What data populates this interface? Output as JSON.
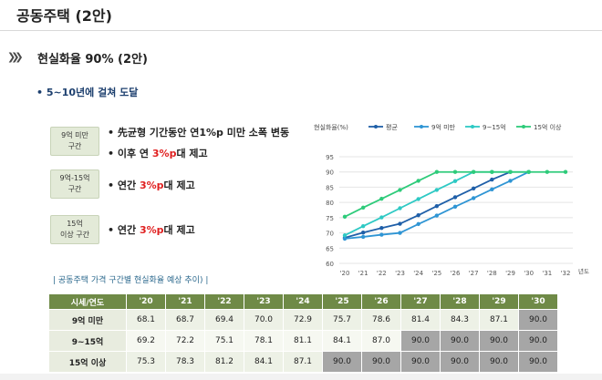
{
  "slide": {
    "title": "공동주택 (2안)",
    "section_title": "현실화율 90% (2안)",
    "sub_bullet": "•  5~10년에 걸쳐 도달"
  },
  "groups": [
    {
      "tag_line1": "9억 미만",
      "tag_line2": "구간",
      "bullets": [
        {
          "prefix": "•  先균형 기간동안 연1%p 미만 소폭 변동",
          "highlight": "",
          "suffix": ""
        },
        {
          "prefix": "•  이후 연 ",
          "highlight": "3%p",
          "suffix": "대 제고"
        }
      ]
    },
    {
      "tag_line1": "9억-15억",
      "tag_line2": "구간",
      "bullets": [
        {
          "prefix": "•  연간 ",
          "highlight": "3%p",
          "suffix": "대 제고"
        }
      ]
    },
    {
      "tag_line1": "15억",
      "tag_line2": "이상 구간",
      "bullets": [
        {
          "prefix": "•  연간 ",
          "highlight": "3%p",
          "suffix": "대 제고"
        }
      ]
    }
  ],
  "chart_data": {
    "type": "line",
    "ylabel": "현실화율(%)",
    "xlabel": "년도",
    "x": [
      "'20",
      "'21",
      "'22",
      "'23",
      "'24",
      "'25",
      "'26",
      "'27",
      "'28",
      "'29",
      "'30",
      "'31",
      "'32"
    ],
    "ylim": [
      60,
      95
    ],
    "yticks": [
      60,
      65,
      70,
      75,
      80,
      85,
      90,
      95
    ],
    "grid": true,
    "legend_position": "top",
    "series": [
      {
        "name": "평균",
        "color": "#1f5fa8",
        "values": [
          68.4,
          70.1,
          71.6,
          73.0,
          75.8,
          78.8,
          81.7,
          84.6,
          87.5,
          90.0,
          null,
          null,
          null
        ]
      },
      {
        "name": "9억 미만",
        "color": "#2f95d4",
        "values": [
          68.1,
          68.7,
          69.4,
          70.0,
          72.9,
          75.7,
          78.6,
          81.4,
          84.3,
          87.1,
          90.0,
          null,
          null
        ]
      },
      {
        "name": "9~15억",
        "color": "#2ec9c4",
        "values": [
          69.2,
          72.2,
          75.1,
          78.1,
          81.1,
          84.1,
          87.0,
          90.0,
          90.0,
          90.0,
          90.0,
          null,
          null
        ]
      },
      {
        "name": "15억 이상",
        "color": "#2ecb7a",
        "values": [
          75.3,
          78.3,
          81.2,
          84.1,
          87.1,
          90.0,
          90.0,
          90.0,
          90.0,
          90.0,
          90.0,
          90.0,
          90.0
        ]
      }
    ]
  },
  "table": {
    "caption": "|  공동주택 가격 구간별 현실화율 예상 추이)  |",
    "headers": [
      "시세/연도",
      "'20",
      "'21",
      "'22",
      "'23",
      "'24",
      "'25",
      "'26",
      "'27",
      "'28",
      "'29",
      "'30"
    ],
    "rows": [
      {
        "label": "9억 미만",
        "values": [
          "68.1",
          "68.7",
          "69.4",
          "70.0",
          "72.9",
          "75.7",
          "78.6",
          "81.4",
          "84.3",
          "87.1",
          "90.0"
        ],
        "gray_from": 10
      },
      {
        "label": "9~15억",
        "values": [
          "69.2",
          "72.2",
          "75.1",
          "78.1",
          "81.1",
          "84.1",
          "87.0",
          "90.0",
          "90.0",
          "90.0",
          "90.0"
        ],
        "gray_from": 7
      },
      {
        "label": "15억 이상",
        "values": [
          "75.3",
          "78.3",
          "81.2",
          "84.1",
          "87.1",
          "90.0",
          "90.0",
          "90.0",
          "90.0",
          "90.0",
          "90.0"
        ],
        "gray_from": 5
      }
    ]
  },
  "colors": {
    "header_green": "#6f8a47",
    "tag_bg": "#e3ead8",
    "reached_gray": "#a6a6a6",
    "highlight_red": "#e02020"
  }
}
